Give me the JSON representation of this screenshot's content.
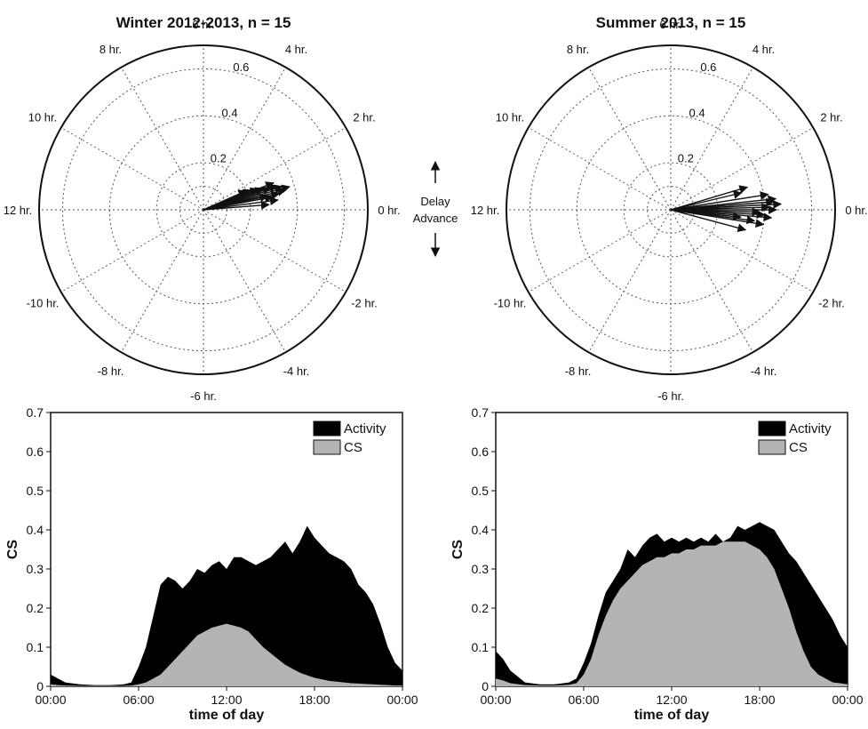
{
  "legend_labels": [
    "Activity",
    "CS"
  ],
  "mid_labels": [
    "Delay",
    "Advance"
  ],
  "chart_data": [
    {
      "type": "polar",
      "title": "Winter 2012-2013, n = 15",
      "angle_labels": [
        "0 hr.",
        "2 hr.",
        "4 hr.",
        "6 hr.",
        "8 hr.",
        "10 hr.",
        "12 hr.",
        "-10 hr.",
        "-8 hr.",
        "-6 hr.",
        "-4 hr.",
        "-2 hr."
      ],
      "radial_ticks": [
        0.2,
        0.4,
        0.6
      ],
      "rlim": [
        0,
        0.7
      ],
      "vectors": [
        {
          "phase_hr": 0.8,
          "magnitude": 0.33
        },
        {
          "phase_hr": 0.9,
          "magnitude": 0.36
        },
        {
          "phase_hr": 1.0,
          "magnitude": 0.38
        },
        {
          "phase_hr": 1.1,
          "magnitude": 0.35
        },
        {
          "phase_hr": 1.2,
          "magnitude": 0.3
        },
        {
          "phase_hr": 1.3,
          "magnitude": 0.27
        },
        {
          "phase_hr": 1.4,
          "magnitude": 0.25
        },
        {
          "phase_hr": 1.5,
          "magnitude": 0.22
        },
        {
          "phase_hr": 1.6,
          "magnitude": 0.2
        },
        {
          "phase_hr": 1.2,
          "magnitude": 0.33
        },
        {
          "phase_hr": 1.4,
          "magnitude": 0.32
        },
        {
          "phase_hr": 0.7,
          "magnitude": 0.3
        },
        {
          "phase_hr": 0.8,
          "magnitude": 0.28
        },
        {
          "phase_hr": 0.5,
          "magnitude": 0.32
        },
        {
          "phase_hr": 0.3,
          "magnitude": 0.28
        }
      ]
    },
    {
      "type": "polar",
      "title": "Summer 2013, n = 15",
      "angle_labels": [
        "0 hr.",
        "2 hr.",
        "4 hr.",
        "6 hr.",
        "8 hr.",
        "10 hr.",
        "12 hr.",
        "-10 hr.",
        "-8 hr.",
        "-6 hr.",
        "-4 hr.",
        "-2 hr."
      ],
      "radial_ticks": [
        0.2,
        0.4,
        0.6
      ],
      "rlim": [
        0,
        0.7
      ],
      "vectors": [
        {
          "phase_hr": 1.1,
          "magnitude": 0.34
        },
        {
          "phase_hr": 0.9,
          "magnitude": 0.31
        },
        {
          "phase_hr": 0.6,
          "magnitude": 0.42
        },
        {
          "phase_hr": 0.4,
          "magnitude": 0.45
        },
        {
          "phase_hr": 0.3,
          "magnitude": 0.44
        },
        {
          "phase_hr": 0.2,
          "magnitude": 0.47
        },
        {
          "phase_hr": 0.1,
          "magnitude": 0.42
        },
        {
          "phase_hr": 0.0,
          "magnitude": 0.45
        },
        {
          "phase_hr": -0.1,
          "magnitude": 0.38
        },
        {
          "phase_hr": -0.2,
          "magnitude": 0.4
        },
        {
          "phase_hr": -0.3,
          "magnitude": 0.43
        },
        {
          "phase_hr": -0.5,
          "magnitude": 0.36
        },
        {
          "phase_hr": -0.6,
          "magnitude": 0.4
        },
        {
          "phase_hr": -0.4,
          "magnitude": 0.3
        },
        {
          "phase_hr": -1.0,
          "magnitude": 0.33
        }
      ]
    },
    {
      "type": "area",
      "xlabel": "time of day",
      "ylabel": "CS",
      "ylim": [
        0,
        0.7
      ],
      "yticks": [
        0,
        0.1,
        0.2,
        0.3,
        0.4,
        0.5,
        0.6,
        0.7
      ],
      "xticks": [
        "00:00",
        "06:00",
        "12:00",
        "18:00",
        "00:00"
      ],
      "legend": "top-right",
      "x_hours": [
        0,
        0.5,
        1,
        2,
        3,
        4,
        5,
        5.5,
        6,
        6.5,
        7,
        7.5,
        8,
        8.5,
        9,
        9.5,
        10,
        10.5,
        11,
        11.5,
        12,
        12.5,
        13,
        13.5,
        14,
        14.5,
        15,
        15.5,
        16,
        16.5,
        17,
        17.5,
        18,
        18.5,
        19,
        19.5,
        20,
        20.5,
        21,
        21.5,
        22,
        22.5,
        23,
        23.5,
        24
      ],
      "series": [
        {
          "name": "Activity",
          "values": [
            0.03,
            0.02,
            0.01,
            0.005,
            0.003,
            0.003,
            0.005,
            0.01,
            0.05,
            0.1,
            0.18,
            0.26,
            0.28,
            0.27,
            0.25,
            0.27,
            0.3,
            0.29,
            0.31,
            0.32,
            0.3,
            0.33,
            0.33,
            0.32,
            0.31,
            0.32,
            0.33,
            0.35,
            0.37,
            0.34,
            0.37,
            0.41,
            0.38,
            0.36,
            0.34,
            0.33,
            0.32,
            0.3,
            0.26,
            0.24,
            0.21,
            0.16,
            0.1,
            0.06,
            0.04
          ]
        },
        {
          "name": "CS",
          "values": [
            0.005,
            0.003,
            0.002,
            0.001,
            0.001,
            0.001,
            0.001,
            0.002,
            0.005,
            0.01,
            0.02,
            0.03,
            0.05,
            0.07,
            0.09,
            0.11,
            0.13,
            0.14,
            0.15,
            0.155,
            0.16,
            0.155,
            0.15,
            0.14,
            0.12,
            0.1,
            0.085,
            0.07,
            0.055,
            0.045,
            0.035,
            0.028,
            0.022,
            0.018,
            0.014,
            0.012,
            0.01,
            0.008,
            0.007,
            0.006,
            0.005,
            0.004,
            0.003,
            0.002,
            0.002
          ]
        }
      ]
    },
    {
      "type": "area",
      "xlabel": "time of day",
      "ylabel": "CS",
      "ylim": [
        0,
        0.7
      ],
      "yticks": [
        0,
        0.1,
        0.2,
        0.3,
        0.4,
        0.5,
        0.6,
        0.7
      ],
      "xticks": [
        "00:00",
        "06:00",
        "12:00",
        "18:00",
        "00:00"
      ],
      "legend": "top-right",
      "x_hours": [
        0,
        0.5,
        1,
        2,
        3,
        4,
        5,
        5.5,
        6,
        6.5,
        7,
        7.5,
        8,
        8.5,
        9,
        9.5,
        10,
        10.5,
        11,
        11.5,
        12,
        12.5,
        13,
        13.5,
        14,
        14.5,
        15,
        15.5,
        16,
        16.5,
        17,
        17.5,
        18,
        18.5,
        19,
        19.5,
        20,
        20.5,
        21,
        21.5,
        22,
        22.5,
        23,
        23.5,
        24
      ],
      "series": [
        {
          "name": "Activity",
          "values": [
            0.09,
            0.07,
            0.04,
            0.01,
            0.005,
            0.005,
            0.01,
            0.02,
            0.06,
            0.11,
            0.18,
            0.24,
            0.27,
            0.3,
            0.35,
            0.33,
            0.36,
            0.38,
            0.39,
            0.37,
            0.38,
            0.37,
            0.38,
            0.37,
            0.38,
            0.37,
            0.39,
            0.37,
            0.38,
            0.41,
            0.4,
            0.41,
            0.42,
            0.41,
            0.4,
            0.37,
            0.34,
            0.32,
            0.29,
            0.26,
            0.23,
            0.2,
            0.17,
            0.13,
            0.1
          ]
        },
        {
          "name": "CS",
          "values": [
            0.02,
            0.015,
            0.008,
            0.003,
            0.002,
            0.002,
            0.004,
            0.008,
            0.03,
            0.07,
            0.13,
            0.18,
            0.22,
            0.25,
            0.27,
            0.29,
            0.31,
            0.32,
            0.33,
            0.33,
            0.34,
            0.34,
            0.35,
            0.35,
            0.36,
            0.36,
            0.36,
            0.37,
            0.37,
            0.37,
            0.37,
            0.36,
            0.35,
            0.33,
            0.3,
            0.25,
            0.2,
            0.14,
            0.09,
            0.05,
            0.03,
            0.02,
            0.01,
            0.008,
            0.005
          ]
        }
      ]
    }
  ]
}
